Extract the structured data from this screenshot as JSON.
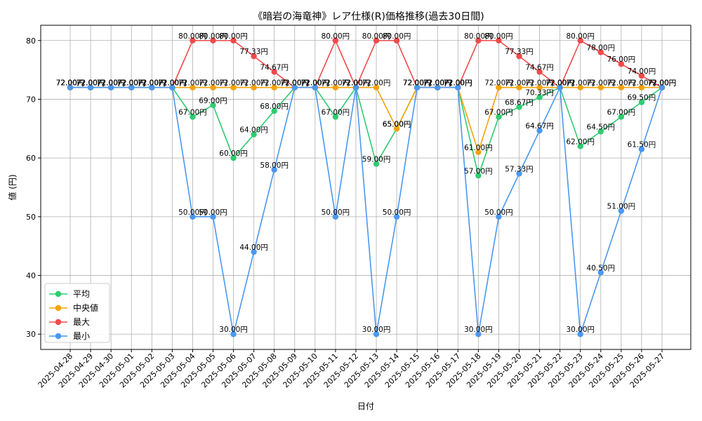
{
  "chart_data": {
    "type": "line",
    "title": "《暗岩の海竜神》レア仕様(R)価格推移(過去30日間)",
    "xlabel": "日付",
    "ylabel": "値 (円)",
    "ylim": [
      27.4,
      82.6
    ],
    "yticks": [
      30,
      40,
      50,
      60,
      70,
      80
    ],
    "grid": true,
    "legend_position": "lower-left",
    "label_suffix": "円",
    "x": [
      "2025-04-28",
      "2025-04-29",
      "2025-04-30",
      "2025-05-01",
      "2025-05-02",
      "2025-05-03",
      "2025-05-04",
      "2025-05-05",
      "2025-05-06",
      "2025-05-07",
      "2025-05-08",
      "2025-05-09",
      "2025-05-10",
      "2025-05-11",
      "2025-05-12",
      "2025-05-13",
      "2025-05-14",
      "2025-05-15",
      "2025-05-16",
      "2025-05-17",
      "2025-05-18",
      "2025-05-19",
      "2025-05-20",
      "2025-05-21",
      "2025-05-22",
      "2025-05-23",
      "2025-05-24",
      "2025-05-25",
      "2025-05-26",
      "2025-05-27"
    ],
    "series": [
      {
        "name": "平均",
        "color": "#2ecc71",
        "values": [
          72,
          72,
          72,
          72,
          72,
          72,
          67,
          69,
          60,
          64,
          68,
          72,
          72,
          67,
          72,
          59,
          65,
          72,
          72,
          72,
          57,
          67,
          68.67,
          70.33,
          72,
          62,
          64.5,
          67,
          69.5,
          72
        ]
      },
      {
        "name": "中央値",
        "color": "#f5a20a",
        "values": [
          72,
          72,
          72,
          72,
          72,
          72,
          72,
          72,
          72,
          72,
          72,
          72,
          72,
          72,
          72,
          72,
          65,
          72,
          72,
          72,
          61,
          72,
          72,
          72,
          72,
          72,
          72,
          72,
          72,
          72
        ]
      },
      {
        "name": "最大",
        "color": "#f04a4a",
        "values": [
          72,
          72,
          72,
          72,
          72,
          72,
          80,
          80,
          80,
          77.33,
          74.67,
          72,
          72,
          80,
          72,
          80,
          80,
          72,
          72,
          72,
          80,
          80,
          77.33,
          74.67,
          72,
          80,
          78,
          76,
          74,
          72
        ]
      },
      {
        "name": "最小",
        "color": "#4a98f0",
        "values": [
          72,
          72,
          72,
          72,
          72,
          72,
          50,
          50,
          30,
          44,
          58,
          72,
          72,
          50,
          72,
          30,
          50,
          72,
          72,
          72,
          30,
          50,
          57.33,
          64.67,
          72,
          30,
          40.5,
          51,
          61.5,
          72
        ]
      }
    ]
  }
}
